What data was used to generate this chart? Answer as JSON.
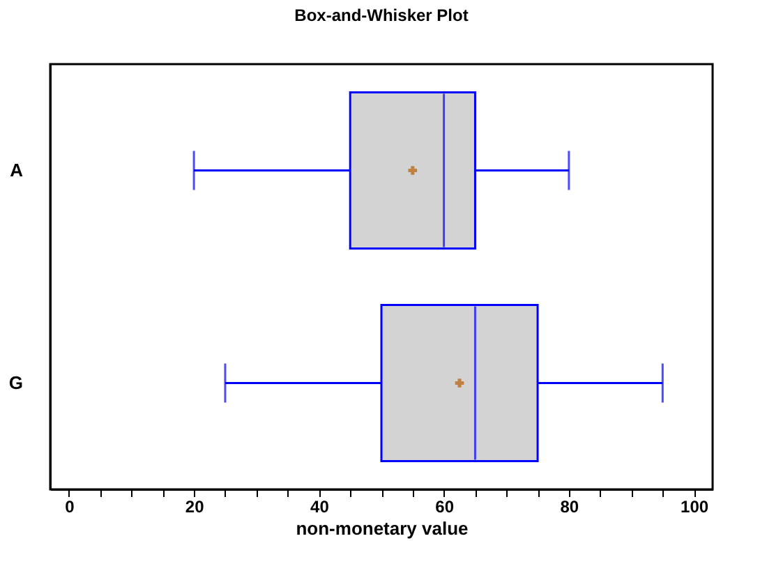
{
  "chart_data": {
    "type": "box",
    "title": "Box-and-Whisker Plot",
    "xlabel": "non-monetary value",
    "orientation": "horizontal",
    "categories": [
      "A",
      "G"
    ],
    "boxes": [
      {
        "low": 20,
        "q1": 45,
        "median": 60,
        "q3": 65,
        "high": 80,
        "mean": 55
      },
      {
        "low": 25,
        "q1": 50,
        "median": 65,
        "q3": 75,
        "high": 95,
        "mean": 62.5
      }
    ],
    "color": "#0000ff",
    "marker": "cross",
    "grid": false,
    "xlim": [
      -3,
      103
    ],
    "xticks": [
      0,
      {
        "value": 5,
        "label": null
      },
      {
        "value": 10,
        "label": null
      },
      {
        "value": 15,
        "label": null
      },
      20,
      {
        "value": 25,
        "label": null
      },
      {
        "value": 30,
        "label": null
      },
      {
        "value": 35,
        "label": null
      },
      40,
      {
        "value": 45,
        "label": null
      },
      {
        "value": 50,
        "label": null
      },
      {
        "value": 55,
        "label": null
      },
      60,
      {
        "value": 65,
        "label": null
      },
      {
        "value": 70,
        "label": null
      },
      {
        "value": 75,
        "label": null
      },
      80,
      {
        "value": 85,
        "label": null
      },
      {
        "value": 90,
        "label": null
      },
      {
        "value": 95,
        "label": null
      },
      100
    ]
  }
}
